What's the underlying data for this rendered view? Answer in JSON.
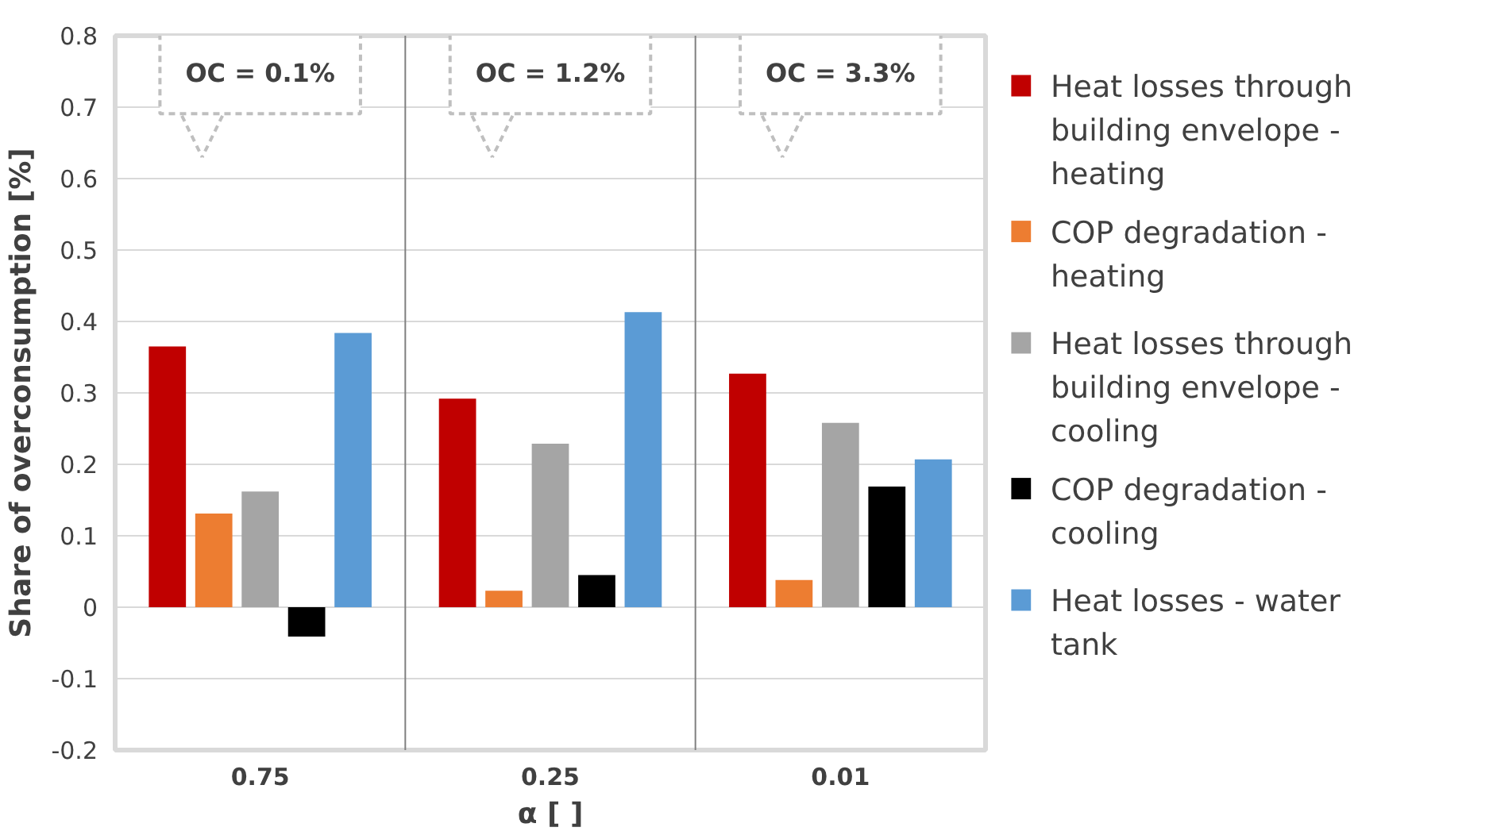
{
  "chart_data": {
    "type": "bar",
    "xlabel": "α [ ]",
    "ylabel": "Share of overconsumption [%]",
    "categories": [
      "0.75",
      "0.25",
      "0.01"
    ],
    "series": [
      {
        "name": "Heat losses through building envelope - heating",
        "color": "#c00000",
        "values": [
          0.365,
          0.292,
          0.327
        ]
      },
      {
        "name": "COP degradation - heating",
        "color": "#ed7d31",
        "values": [
          0.131,
          0.023,
          0.038
        ]
      },
      {
        "name": "Heat losses through building envelope - cooling",
        "color": "#a5a5a5",
        "values": [
          0.162,
          0.229,
          0.258
        ]
      },
      {
        "name": "COP degradation - cooling",
        "color": "#000000",
        "values": [
          -0.041,
          0.045,
          0.169
        ]
      },
      {
        "name": "Heat losses - water tank",
        "color": "#5b9bd5",
        "values": [
          0.384,
          0.413,
          0.207
        ]
      }
    ],
    "ylim": [
      -0.2,
      0.8
    ],
    "yticks": [
      -0.2,
      -0.1,
      0,
      0.1,
      0.2,
      0.3,
      0.4,
      0.5,
      0.6,
      0.7,
      0.8
    ],
    "grid": "y",
    "legend": "right",
    "annotations": [
      "OC = 0.1%",
      "OC = 1.2%",
      "OC = 3.3%"
    ]
  }
}
